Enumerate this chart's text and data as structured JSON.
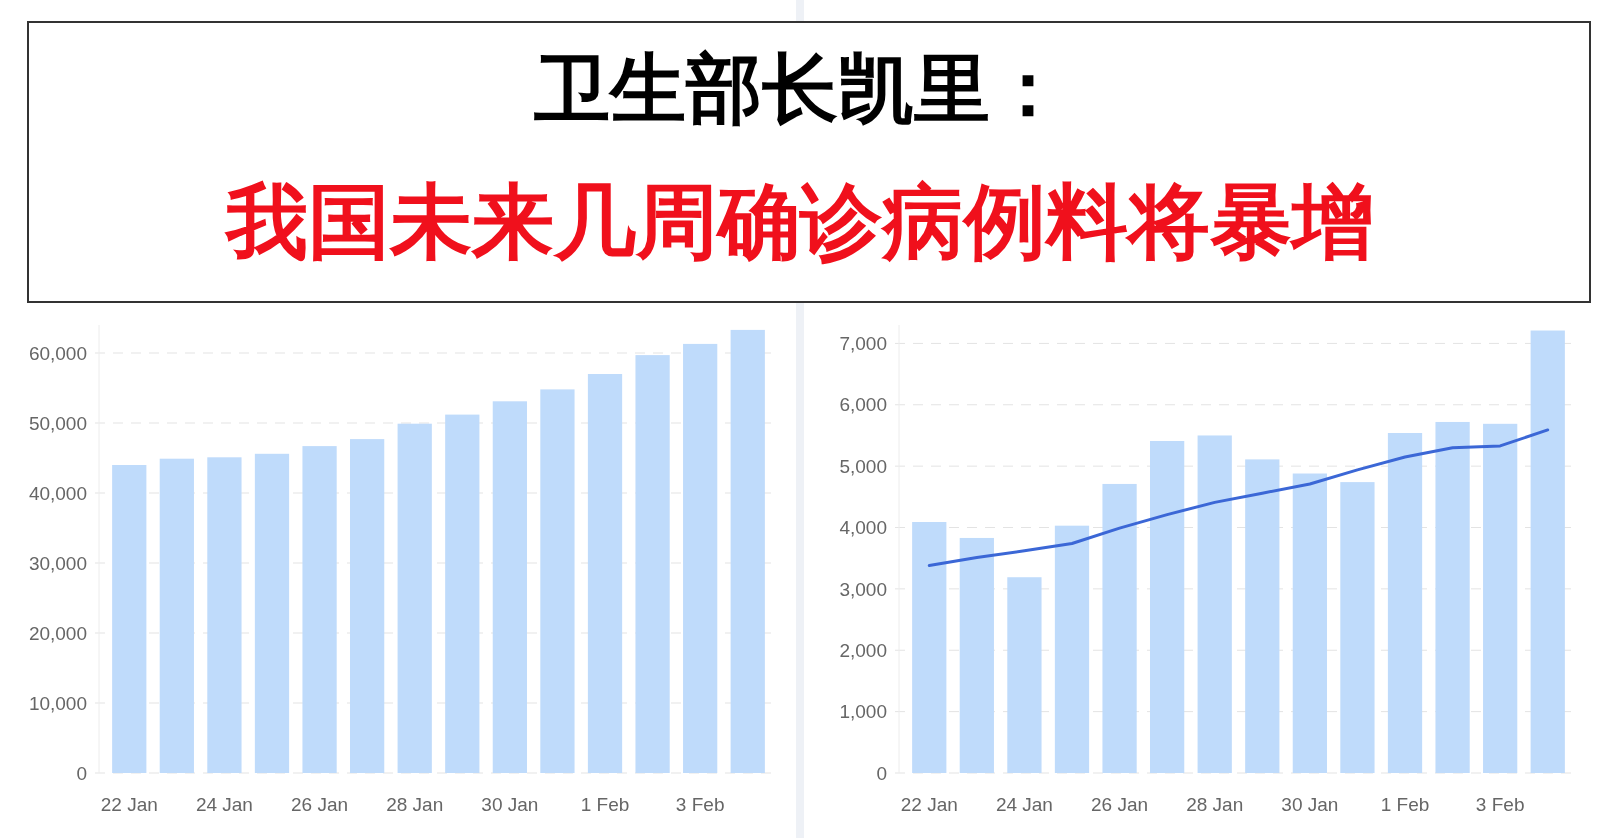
{
  "chart_data": [
    {
      "type": "bar",
      "title": "卫生部长凯里：",
      "subtitle": "我国未来几周确诊病例料将暴增",
      "categories": [
        "22 Jan",
        null,
        "24 Jan",
        null,
        "26 Jan",
        null,
        "28 Jan",
        null,
        "30 Jan",
        null,
        "1 Feb",
        null,
        "3 Feb",
        null
      ],
      "series": [
        {
          "color": "#bfdbfb",
          "values": [
            44000,
            44900,
            45100,
            45600,
            46700,
            47700,
            49900,
            51200,
            53100,
            54800,
            57000,
            59700,
            61300,
            63300
          ]
        }
      ],
      "ylim": [
        0,
        64000
      ],
      "yticks": [
        0,
        {
          "value": 10000,
          "label": "10,000"
        },
        {
          "value": 20000,
          "label": "20,000"
        },
        {
          "value": 30000,
          "label": "30,000"
        },
        {
          "value": 40000,
          "label": "40,000"
        },
        {
          "value": 50000,
          "label": "50,000"
        },
        {
          "value": 60000,
          "label": "60,000"
        }
      ],
      "grid": "y"
    },
    {
      "type": "bar",
      "categories": [
        "22 Jan",
        null,
        "24 Jan",
        null,
        "26 Jan",
        null,
        "28 Jan",
        null,
        "30 Jan",
        null,
        "1 Feb",
        null,
        "3 Feb",
        null
      ],
      "series": [
        {
          "color": "#bfdbfb",
          "values": [
            4090,
            3830,
            3190,
            4030,
            4710,
            5410,
            5500,
            5110,
            4880,
            4740,
            5540,
            5720,
            5690,
            7210
          ]
        },
        {
          "type": "line",
          "color": "#3b67d6",
          "values": [
            3380,
            3510,
            3620,
            3740,
            3990,
            4210,
            4410,
            4560,
            4710,
            4940,
            5150,
            5300,
            5330,
            5590
          ]
        }
      ],
      "ylim": [
        0,
        7300
      ],
      "yticks": [
        0,
        {
          "value": 1000,
          "label": "1,000"
        },
        {
          "value": 2000,
          "label": "2,000"
        },
        {
          "value": 3000,
          "label": "3,000"
        },
        {
          "value": 4000,
          "label": "4,000"
        },
        {
          "value": 5000,
          "label": "5,000"
        },
        {
          "value": 6000,
          "label": "6,000"
        },
        {
          "value": 7000,
          "label": "7,000"
        }
      ],
      "grid": "y"
    }
  ]
}
